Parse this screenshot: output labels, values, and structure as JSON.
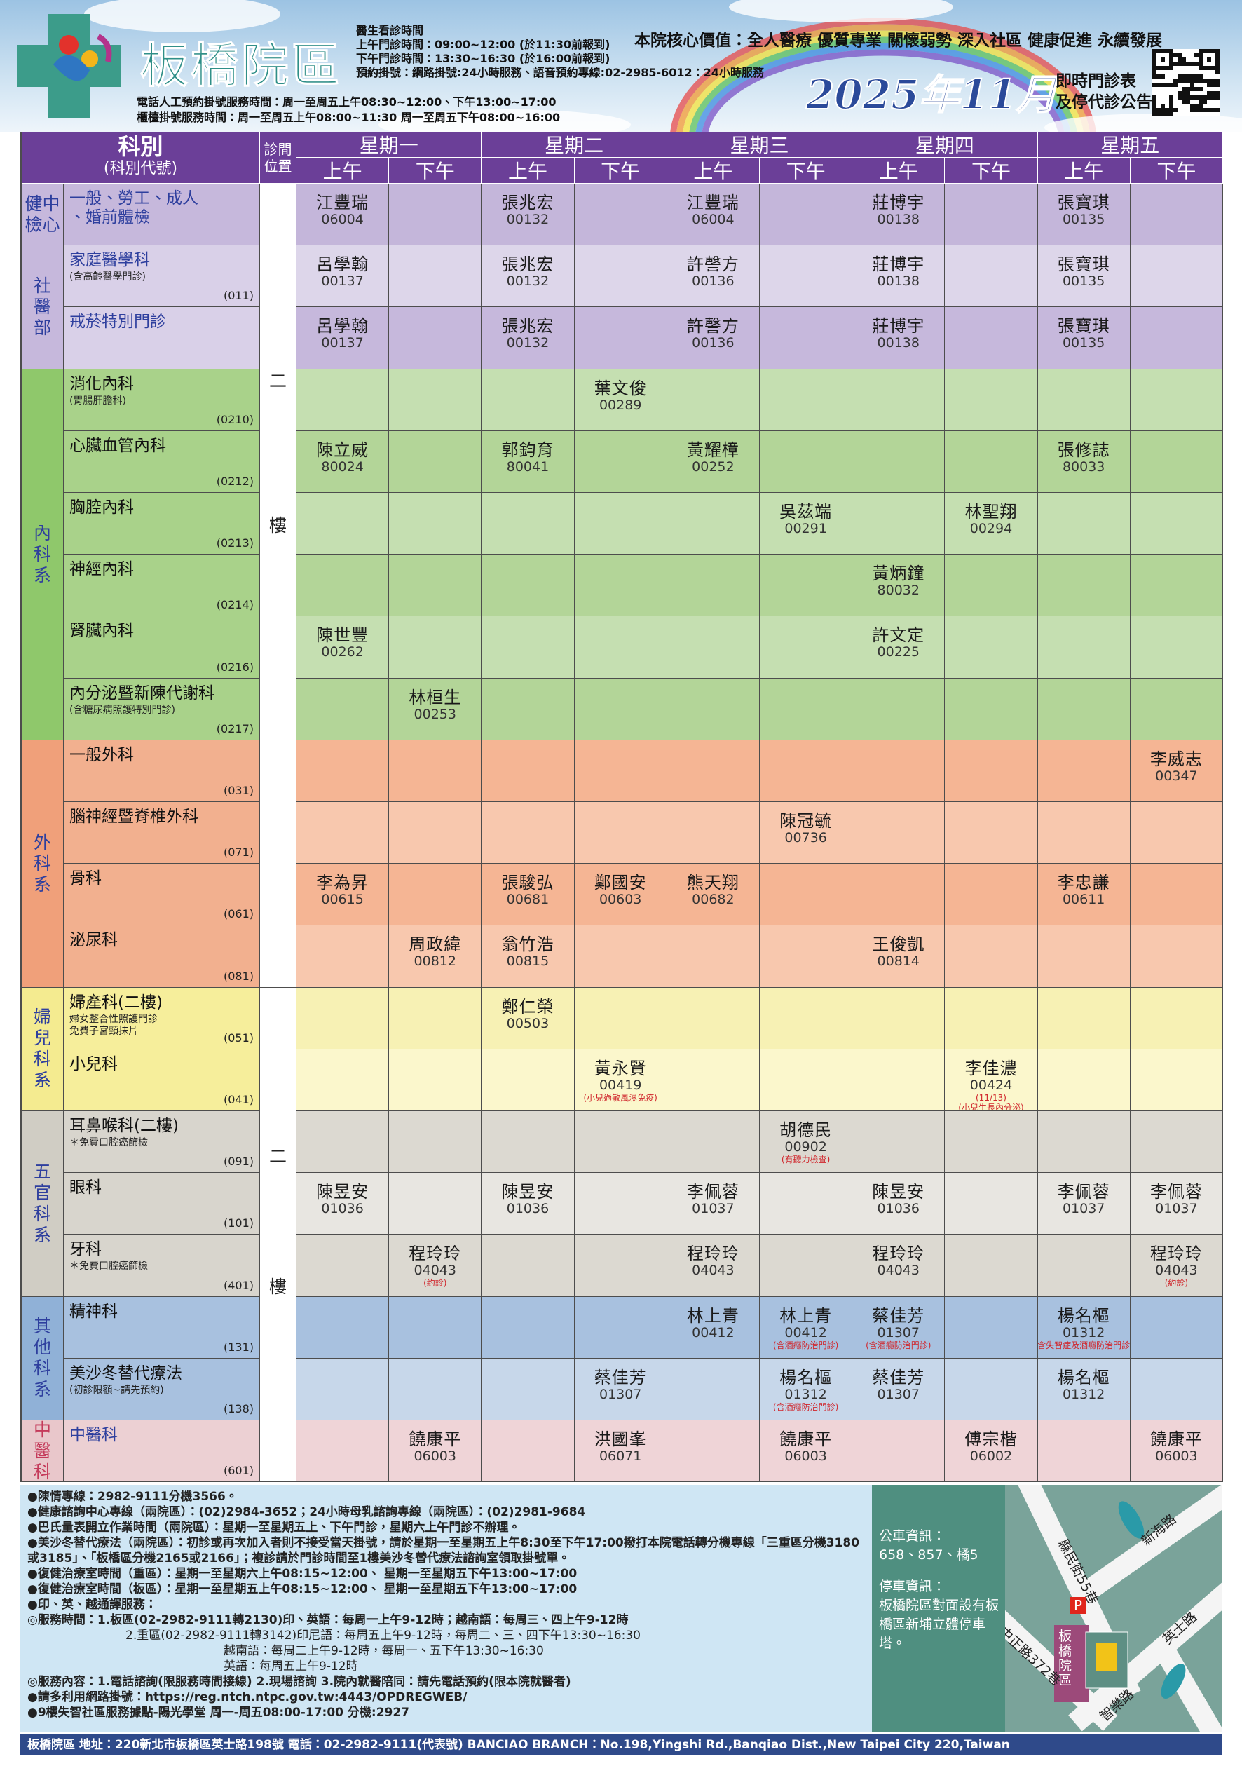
{
  "header": {
    "logo_text": "板橋院區",
    "hours": [
      "醫生看診時間",
      "上午門診時間：09:00~12:00 (於11:30前報到)",
      "下午門診時間：13:30~16:30 (於16:00前報到)",
      "預約掛號：網路掛號:24小時服務、語音預約專線:02-2985-6012：24小時服務"
    ],
    "phone_hours": [
      "電話人工預約掛號服務時間：周一至周五上午08:30~12:00、下午13:00~17:00",
      "櫃檯掛號服務時間：周一至周五上午08:00~11:30  周一至周五下午08:00~16:00"
    ],
    "core_values": "本院核心價值：全人醫療 優質專業 關懷弱勢 深入社區 健康促進 永續發展",
    "year_month": "2025年11月",
    "subtitle": [
      "即時門診表",
      "及停代診公告"
    ]
  },
  "table": {
    "dept_header": "科別",
    "dept_sub": "(科別代號)",
    "location_header": "診間位置",
    "days": [
      "星期一",
      "星期二",
      "星期三",
      "星期四",
      "星期五"
    ],
    "halves": [
      "上午",
      "下午"
    ],
    "locations": [
      [
        "二",
        "樓"
      ],
      [
        "二",
        "樓"
      ]
    ],
    "groups": [
      {
        "name_lines": [
          "健中",
          "檢心"
        ],
        "rows": [
          {
            "name": [
              "一般、勞工、成人",
              "、婚前體檢"
            ],
            "cells": [
              {
                "doctor": "江豐瑞",
                "id": "06004"
              },
              null,
              {
                "doctor": "張兆宏",
                "id": "00132"
              },
              null,
              {
                "doctor": "江豐瑞",
                "id": "06004"
              },
              null,
              {
                "doctor": "莊博宇",
                "id": "00138"
              },
              null,
              {
                "doctor": "張寶琪",
                "id": "00135"
              },
              null
            ]
          }
        ]
      },
      {
        "name_lines": [
          "社",
          "醫",
          "部"
        ],
        "rows": [
          {
            "name": "家庭醫學科",
            "notes": [
              "(含高齡醫學門診)"
            ],
            "code": "(011)",
            "cells": [
              {
                "doctor": "呂學翰",
                "id": "00137"
              },
              null,
              {
                "doctor": "張兆宏",
                "id": "00132"
              },
              null,
              {
                "doctor": "許謦方",
                "id": "00136"
              },
              null,
              {
                "doctor": "莊博宇",
                "id": "00138"
              },
              null,
              {
                "doctor": "張寶琪",
                "id": "00135"
              },
              null
            ]
          },
          {
            "name": "戒菸特別門診",
            "cells": [
              {
                "doctor": "呂學翰",
                "id": "00137"
              },
              null,
              {
                "doctor": "張兆宏",
                "id": "00132"
              },
              null,
              {
                "doctor": "許謦方",
                "id": "00136"
              },
              null,
              {
                "doctor": "莊博宇",
                "id": "00138"
              },
              null,
              {
                "doctor": "張寶琪",
                "id": "00135"
              },
              null
            ]
          }
        ]
      },
      {
        "name_lines": [
          "內",
          "科",
          "系"
        ],
        "rows": [
          {
            "name": "消化內科",
            "notes": [
              "(胃腸肝膽科)"
            ],
            "code": "(0210)",
            "cells": [
              null,
              null,
              null,
              {
                "doctor": "葉文俊",
                "id": "00289"
              },
              null,
              null,
              null,
              null,
              null,
              null
            ]
          },
          {
            "name": "心臟血管內科",
            "code": "(0212)",
            "cells": [
              {
                "doctor": "陳立威",
                "id": "80024"
              },
              null,
              {
                "doctor": "郭鈞育",
                "id": "80041"
              },
              null,
              {
                "doctor": "黃耀樟",
                "id": "00252"
              },
              null,
              null,
              null,
              {
                "doctor": "張修誌",
                "id": "80033"
              },
              null
            ]
          },
          {
            "name": "胸腔內科",
            "code": "(0213)",
            "cells": [
              null,
              null,
              null,
              null,
              null,
              {
                "doctor": "吳茲端",
                "id": "00291"
              },
              null,
              {
                "doctor": "林聖翔",
                "id": "00294"
              },
              null,
              null
            ]
          },
          {
            "name": "神經內科",
            "code": "(0214)",
            "cells": [
              null,
              null,
              null,
              null,
              null,
              null,
              {
                "doctor": "黃炳鐘",
                "id": "80032"
              },
              null,
              null,
              null
            ]
          },
          {
            "name": "腎臟內科",
            "code": "(0216)",
            "cells": [
              {
                "doctor": "陳世豐",
                "id": "00262"
              },
              null,
              null,
              null,
              null,
              null,
              {
                "doctor": "許文定",
                "id": "00225"
              },
              null,
              null,
              null
            ]
          },
          {
            "name": "內分泌暨新陳代謝科",
            "notes": [
              "(含糖尿病照護特別門診)"
            ],
            "code": "(0217)",
            "cells": [
              null,
              {
                "doctor": "林桓生",
                "id": "00253"
              },
              null,
              null,
              null,
              null,
              null,
              null,
              null,
              null
            ]
          }
        ]
      },
      {
        "name_lines": [
          "外",
          "科",
          "系"
        ],
        "rows": [
          {
            "name": "一般外科",
            "code": "(031)",
            "cells": [
              null,
              null,
              null,
              null,
              null,
              null,
              null,
              null,
              null,
              {
                "doctor": "李威志",
                "id": "00347"
              }
            ]
          },
          {
            "name": "腦神經暨脊椎外科",
            "code": "(071)",
            "cells": [
              null,
              null,
              null,
              null,
              null,
              {
                "doctor": "陳冠毓",
                "id": "00736"
              },
              null,
              null,
              null,
              null
            ]
          },
          {
            "name": "骨科",
            "code": "(061)",
            "cells": [
              {
                "doctor": "李為昇",
                "id": "00615"
              },
              null,
              {
                "doctor": "張駿弘",
                "id": "00681"
              },
              {
                "doctor": "鄭國安",
                "id": "00603"
              },
              {
                "doctor": "熊天翔",
                "id": "00682"
              },
              null,
              null,
              null,
              {
                "doctor": "李忠謙",
                "id": "00611"
              },
              null
            ]
          },
          {
            "name": "泌尿科",
            "code": "(081)",
            "cells": [
              null,
              {
                "doctor": "周政緯",
                "id": "00812"
              },
              {
                "doctor": "翁竹浩",
                "id": "00815"
              },
              null,
              null,
              null,
              {
                "doctor": "王俊凱",
                "id": "00814"
              },
              null,
              null,
              null
            ]
          }
        ]
      },
      {
        "name_lines": [
          "婦",
          "兒",
          "科",
          "系"
        ],
        "rows": [
          {
            "name": "婦產科(二樓)",
            "notes": [
              "婦女整合性照護門診",
              "免費子宮頸抹片"
            ],
            "code": "(051)",
            "cells": [
              null,
              null,
              {
                "doctor": "鄭仁榮",
                "id": "00503"
              },
              null,
              null,
              null,
              null,
              null,
              null,
              null
            ]
          },
          {
            "name": "小兒科",
            "code": "(041)",
            "cells": [
              null,
              null,
              null,
              {
                "doctor": "黃永賢",
                "id": "00419",
                "notes": [
                  "(小兒過敏風濕免疫)"
                ]
              },
              null,
              null,
              null,
              {
                "doctor": "李佳濃",
                "id": "00424",
                "notes": [
                  "(11/13)",
                  "(小兒生長內分泌)"
                ]
              },
              null,
              null
            ]
          }
        ]
      },
      {
        "name_lines": [
          "五",
          "官",
          "科",
          "系"
        ],
        "rows": [
          {
            "name": "耳鼻喉科(二樓)",
            "notes": [
              "＊免費口腔癌篩檢"
            ],
            "code": "(091)",
            "cells": [
              null,
              null,
              null,
              null,
              null,
              {
                "doctor": "胡德民",
                "id": "00902",
                "notes": [
                  "(有聽力檢查)"
                ]
              },
              null,
              null,
              null,
              null
            ]
          },
          {
            "name": "眼科",
            "code": "(101)",
            "cells": [
              {
                "doctor": "陳昱安",
                "id": "01036"
              },
              null,
              {
                "doctor": "陳昱安",
                "id": "01036"
              },
              null,
              {
                "doctor": "李佩蓉",
                "id": "01037"
              },
              null,
              {
                "doctor": "陳昱安",
                "id": "01036"
              },
              null,
              {
                "doctor": "李佩蓉",
                "id": "01037"
              },
              {
                "doctor": "李佩蓉",
                "id": "01037"
              }
            ]
          },
          {
            "name": "牙科",
            "notes": [
              "＊免費口腔癌篩檢"
            ],
            "code": "(401)",
            "cells": [
              null,
              {
                "doctor": "程玲玲",
                "id": "04043",
                "notes": [
                  "(約診)"
                ]
              },
              null,
              null,
              {
                "doctor": "程玲玲",
                "id": "04043"
              },
              null,
              {
                "doctor": "程玲玲",
                "id": "04043"
              },
              null,
              null,
              {
                "doctor": "程玲玲",
                "id": "04043",
                "notes": [
                  "(約診)"
                ]
              }
            ]
          }
        ]
      },
      {
        "name_lines": [
          "其",
          "他",
          "科",
          "系"
        ],
        "rows": [
          {
            "name": "精神科",
            "code": "(131)",
            "cells": [
              null,
              null,
              null,
              null,
              {
                "doctor": "林上青",
                "id": "00412"
              },
              {
                "doctor": "林上青",
                "id": "00412",
                "notes": [
                  "(含酒癮防治門診)"
                ]
              },
              {
                "doctor": "蔡佳芳",
                "id": "01307",
                "notes": [
                  "(含酒癮防治門診)"
                ]
              },
              null,
              {
                "doctor": "楊名樞",
                "id": "01312",
                "notes": [
                  "(含失智症及酒癮防治門診)"
                ]
              },
              null
            ]
          },
          {
            "name": "美沙冬替代療法",
            "notes": [
              "(初診限額~請先預約)"
            ],
            "code": "(138)",
            "cells": [
              null,
              null,
              null,
              {
                "doctor": "蔡佳芳",
                "id": "01307"
              },
              null,
              {
                "doctor": "楊名樞",
                "id": "01312",
                "notes": [
                  "(含酒癮防治門診)"
                ]
              },
              {
                "doctor": "蔡佳芳",
                "id": "01307"
              },
              null,
              {
                "doctor": "楊名樞",
                "id": "01312"
              },
              null
            ]
          }
        ]
      },
      {
        "name_lines": [
          "中",
          "醫",
          "科"
        ],
        "rows": [
          {
            "name": "中醫科",
            "code": "(601)",
            "cells": [
              null,
              {
                "doctor": "饒康平",
                "id": "06003"
              },
              null,
              {
                "doctor": "洪國峯",
                "id": "06071"
              },
              null,
              {
                "doctor": "饒康平",
                "id": "06003"
              },
              null,
              {
                "doctor": "傅宗楷",
                "id": "06002"
              },
              null,
              {
                "doctor": "饒康平",
                "id": "06003"
              }
            ]
          }
        ]
      }
    ]
  },
  "footer": {
    "info": [
      "●陳情專線：2982-9111分機3566。",
      "●健康諮詢中心專線（兩院區）：(02)2984-3652；24小時母乳諮詢專線（兩院區）：(02)2981-9684",
      "●巴氏量表開立作業時間（兩院區）：星期一至星期五上、下午門診，星期六上午門診不辦理。",
      "●美沙冬替代療法（兩院區）：初診或再次加入者則不接受當天掛號，請於星期一至星期五上午8:30至下午17:00撥打本院電話轉分機專線「三重區分機3180或3185」、「板橋區分機2165或2166」；複診請於門診時間至1樓美沙冬替代療法諮詢室領取掛號單。",
      "●復健治療室時間（重區）：星期一至星期六上午08:15~12:00、 星期一至星期五下午13:00~17:00",
      "●復健治療室時間（板區）：星期一至星期五上午08:15~12:00、 星期一至星期五下午13:00~17:00",
      "●印、英、越通譯服務：",
      "◎服務時間：1.板區(02-2982-9111轉2130)印、英語：每周一上午9-12時；越南語：每周三、四上午9-12時",
      "2.重區(02-2982-9111轉3142)印尼語：每周五上午9-12時，每周二、三、四下午13:30~16:30",
      "越南語：每周二上午9-12時，每周一、五下午13:30~16:30",
      "英語：每周五上午9-12時",
      "◎服務內容：1.電話諮詢(限服務時間接線) 2.現場諮詢 3.院內就醫陪同：請先電話預約(限本院就醫者)",
      "●請多利用網路掛號：https://reg.ntch.ntpc.gov.tw:4443/OPDREGWEB/",
      "●9樓失智社區服務據點-陽光學堂  周一-周五08:00-17:00 分機:2927"
    ],
    "bus": [
      "公車資訊：",
      "658、857、橘5",
      "停車資訊：",
      "板橋院區對面設有板橋區新埔立體停車塔。"
    ],
    "map": {
      "roads": [
        "縣民街55巷",
        "新海路",
        "英士路",
        "中正路372巷",
        "智樂路"
      ],
      "site": "板橋院區",
      "parking": "P"
    },
    "address": "板橋院區  地址：220新北市板橋區英士路198號  電話：02-2982-9111(代表號)  BANCIAO BRANCH：No.198,Yingshi Rd.,Banqiao Dist.,New Taipei City 220,Taiwan"
  }
}
